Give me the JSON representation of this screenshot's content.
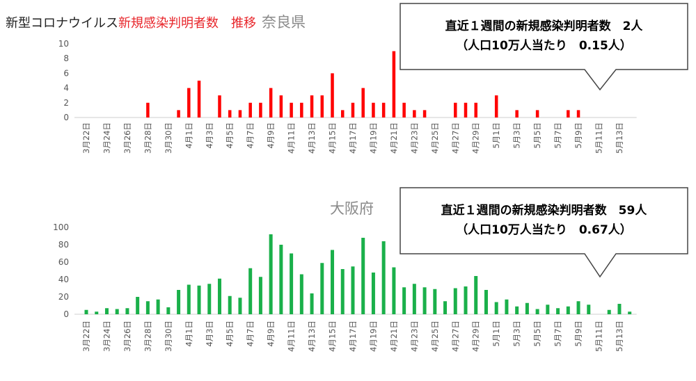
{
  "header": {
    "title_black": "新型コロナウイルス",
    "title_red": "新規感染判明者数　推移",
    "region_nara": "奈良県",
    "region_osaka": "大阪府"
  },
  "colors": {
    "nara": "#ff0000",
    "osaka": "#1ab04a",
    "title_red": "#e8262b",
    "region_gray": "#8a8a8a"
  },
  "chart_data": [
    {
      "type": "bar",
      "title": "奈良県",
      "ylim": [
        0,
        10
      ],
      "yticks": [
        0,
        2,
        4,
        6,
        8,
        10
      ],
      "grid": false,
      "categories": [
        "3月22日",
        "3月23日",
        "3月24日",
        "3月25日",
        "3月26日",
        "3月27日",
        "3月28日",
        "3月29日",
        "3月30日",
        "3月31日",
        "4月1日",
        "4月2日",
        "4月3日",
        "4月4日",
        "4月5日",
        "4月6日",
        "4月7日",
        "4月8日",
        "4月9日",
        "4月10日",
        "4月11日",
        "4月12日",
        "4月13日",
        "4月14日",
        "4月15日",
        "4月16日",
        "4月17日",
        "4月18日",
        "4月19日",
        "4月20日",
        "4月21日",
        "4月22日",
        "4月23日",
        "4月24日",
        "4月25日",
        "4月26日",
        "4月27日",
        "4月28日",
        "4月29日",
        "4月30日",
        "5月1日",
        "5月2日",
        "5月3日",
        "5月4日",
        "5月5日",
        "5月6日",
        "5月7日",
        "5月8日",
        "5月9日",
        "5月10日",
        "5月11日",
        "5月12日",
        "5月13日",
        "5月14日"
      ],
      "tick_labels": [
        "3月22日",
        "3月24日",
        "3月26日",
        "3月28日",
        "3月30日",
        "4月1日",
        "4月3日",
        "4月5日",
        "4月7日",
        "4月9日",
        "4月11日",
        "4月13日",
        "4月15日",
        "4月17日",
        "4月19日",
        "4月21日",
        "4月23日",
        "4月25日",
        "4月27日",
        "4月29日",
        "5月1日",
        "5月3日",
        "5月5日",
        "5月7日",
        "5月9日",
        "5月11日",
        "5月13日"
      ],
      "values": [
        0,
        0,
        0,
        0,
        0,
        0,
        2,
        0,
        0,
        1,
        4,
        5,
        0,
        3,
        1,
        1,
        2,
        2,
        4,
        3,
        2,
        2,
        3,
        3,
        6,
        1,
        2,
        4,
        2,
        2,
        9,
        2,
        1,
        1,
        0,
        0,
        2,
        2,
        2,
        0,
        3,
        0,
        1,
        0,
        1,
        0,
        0,
        1,
        1,
        0,
        0,
        0,
        0,
        0
      ],
      "callout": {
        "line1": "直近１週間の新規感染判明者数　2人",
        "line2": "（人口10万人当たり　0.15人）"
      }
    },
    {
      "type": "bar",
      "title": "大阪府",
      "ylim": [
        0,
        100
      ],
      "yticks": [
        0,
        20,
        40,
        60,
        80,
        100
      ],
      "grid": false,
      "categories": [
        "3月22日",
        "3月23日",
        "3月24日",
        "3月25日",
        "3月26日",
        "3月27日",
        "3月28日",
        "3月29日",
        "3月30日",
        "3月31日",
        "4月1日",
        "4月2日",
        "4月3日",
        "4月4日",
        "4月5日",
        "4月6日",
        "4月7日",
        "4月8日",
        "4月9日",
        "4月10日",
        "4月11日",
        "4月12日",
        "4月13日",
        "4月14日",
        "4月15日",
        "4月16日",
        "4月17日",
        "4月18日",
        "4月19日",
        "4月20日",
        "4月21日",
        "4月22日",
        "4月23日",
        "4月24日",
        "4月25日",
        "4月26日",
        "4月27日",
        "4月28日",
        "4月29日",
        "4月30日",
        "5月1日",
        "5月2日",
        "5月3日",
        "5月4日",
        "5月5日",
        "5月6日",
        "5月7日",
        "5月8日",
        "5月9日",
        "5月10日",
        "5月11日",
        "5月12日",
        "5月13日",
        "5月14日"
      ],
      "tick_labels": [
        "3月22日",
        "3月24日",
        "3月26日",
        "3月28日",
        "3月30日",
        "4月1日",
        "4月3日",
        "4月5日",
        "4月7日",
        "4月9日",
        "4月11日",
        "4月13日",
        "4月15日",
        "4月17日",
        "4月19日",
        "4月21日",
        "4月23日",
        "4月25日",
        "4月27日",
        "4月29日",
        "5月1日",
        "5月3日",
        "5月5日",
        "5月7日",
        "5月9日",
        "5月11日",
        "5月13日"
      ],
      "values": [
        5,
        3,
        7,
        6,
        7,
        20,
        15,
        17,
        8,
        28,
        34,
        33,
        35,
        41,
        21,
        19,
        53,
        43,
        92,
        80,
        70,
        46,
        24,
        59,
        74,
        52,
        55,
        88,
        48,
        84,
        54,
        31,
        35,
        31,
        29,
        15,
        30,
        32,
        44,
        28,
        14,
        17,
        9,
        13,
        6,
        11,
        7,
        9,
        15,
        11,
        0,
        5,
        12,
        3
      ],
      "callout": {
        "line1": "直近１週間の新規感染判明者数　59人",
        "line2": "（人口10万人当たり　0.67人）"
      }
    }
  ]
}
